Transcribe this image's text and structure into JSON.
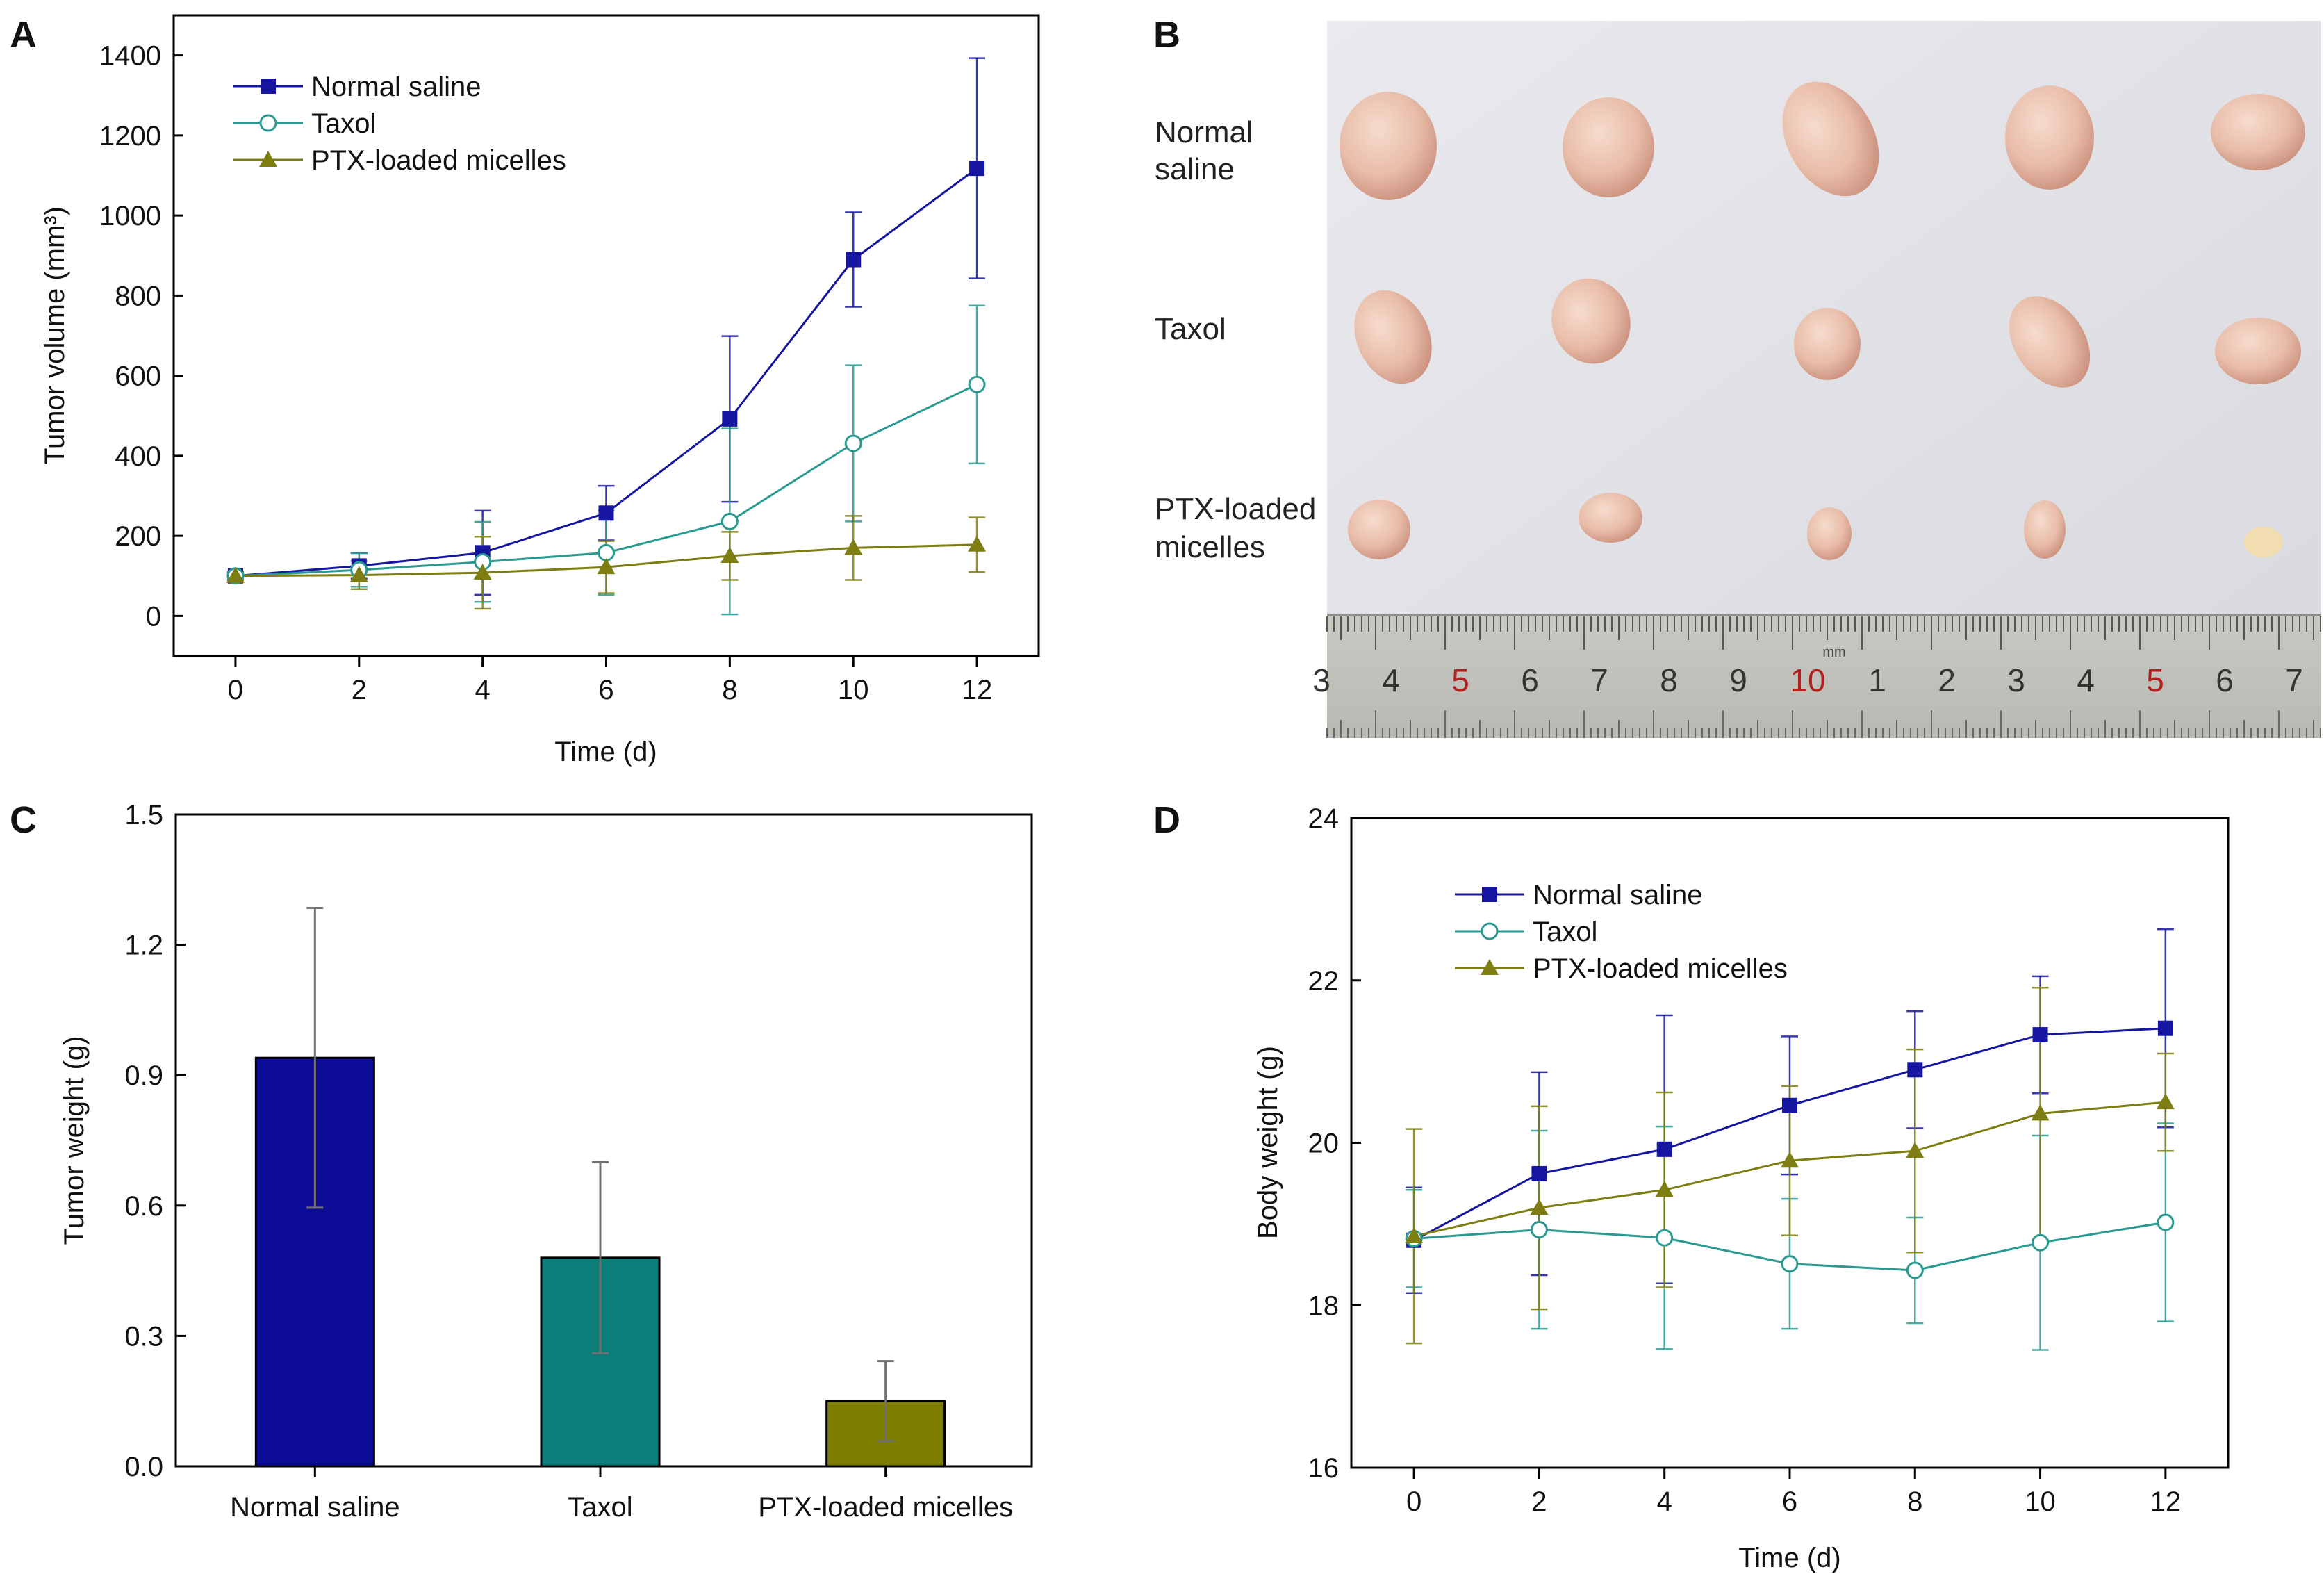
{
  "panels": {
    "a": "A",
    "b": "B",
    "c": "C",
    "d": "D"
  },
  "colors": {
    "normal_saline": "#1515a0",
    "taxol": "#2a9a90",
    "ptx": "#7d7d12",
    "bar_normal": "#0c0c96",
    "bar_taxol": "#0d7f7a",
    "bar_ptx": "#7d7d00",
    "errbar": "#707070"
  },
  "photo": {
    "row_labels": [
      "Normal\nsaline",
      "Taxol",
      "PTX-loaded\nmicelles"
    ],
    "ruler_numbers": [
      "3",
      "4",
      "5",
      "6",
      "7",
      "8",
      "9",
      "10",
      "1",
      "2",
      "3",
      "4",
      "5",
      "6",
      "7"
    ],
    "ruler_unit": "mm"
  },
  "chart_data": [
    {
      "panel": "A",
      "type": "line",
      "xlabel": "Time (d)",
      "ylabel": "Tumor volume (mm³)",
      "xlim": [
        -1,
        13
      ],
      "ylim": [
        -100,
        1500
      ],
      "xticks": [
        0,
        2,
        4,
        6,
        8,
        10,
        12
      ],
      "yticks": [
        0,
        200,
        400,
        600,
        800,
        1000,
        1200,
        1400
      ],
      "legend_position": "top-left",
      "series": [
        {
          "name": "Normal  saline",
          "key": "normal_saline",
          "marker": "square",
          "x": [
            0,
            2,
            4,
            6,
            8,
            10,
            12
          ],
          "values": [
            100,
            125,
            158,
            257,
            492,
            890,
            1118
          ],
          "errors": [
            10,
            32,
            105,
            68,
            207,
            118,
            275
          ]
        },
        {
          "name": "Taxol",
          "key": "taxol",
          "marker": "circle-open",
          "x": [
            0,
            2,
            4,
            6,
            8,
            10,
            12
          ],
          "values": [
            100,
            115,
            135,
            158,
            236,
            431,
            578
          ],
          "errors": [
            10,
            42,
            100,
            105,
            232,
            195,
            197
          ]
        },
        {
          "name": "PTX-loaded micelles",
          "key": "ptx",
          "marker": "triangle",
          "x": [
            0,
            2,
            4,
            6,
            8,
            10,
            12
          ],
          "values": [
            100,
            102,
            108,
            122,
            150,
            170,
            178
          ],
          "errors": [
            10,
            35,
            90,
            65,
            60,
            80,
            68
          ]
        }
      ]
    },
    {
      "panel": "C",
      "type": "bar",
      "xlabel": "",
      "ylabel": "Tumor weight (g)",
      "ylim": [
        0,
        1.5
      ],
      "yticks": [
        "0.0",
        "0.3",
        "0.6",
        "0.9",
        "1.2",
        "1.5"
      ],
      "categories": [
        "Normal saline",
        "Taxol",
        "PTX-loaded micelles"
      ],
      "values": [
        0.94,
        0.48,
        0.15
      ],
      "errors": [
        0.345,
        0.22,
        0.092
      ],
      "bar_keys": [
        "bar_normal",
        "bar_taxol",
        "bar_ptx"
      ]
    },
    {
      "panel": "D",
      "type": "line",
      "xlabel": "Time (d)",
      "ylabel": "Body weight (g)",
      "xlim": [
        -1,
        13
      ],
      "ylim": [
        16,
        24
      ],
      "xticks": [
        0,
        2,
        4,
        6,
        8,
        10,
        12
      ],
      "yticks": [
        16,
        18,
        20,
        22,
        24
      ],
      "legend_position": "top-left",
      "series": [
        {
          "name": "Normal saline",
          "key": "normal_saline",
          "marker": "square",
          "x": [
            0,
            2,
            4,
            6,
            8,
            10,
            12
          ],
          "values": [
            18.8,
            19.62,
            19.92,
            20.46,
            20.9,
            21.33,
            21.41
          ],
          "errors": [
            0.65,
            1.25,
            1.65,
            0.85,
            0.72,
            0.72,
            1.22
          ]
        },
        {
          "name": "Taxol",
          "key": "taxol",
          "marker": "circle-open",
          "x": [
            0,
            2,
            4,
            6,
            8,
            10,
            12
          ],
          "values": [
            18.82,
            18.93,
            18.83,
            18.51,
            18.43,
            18.77,
            19.02
          ],
          "errors": [
            0.6,
            1.22,
            1.37,
            0.8,
            0.65,
            1.32,
            1.22
          ]
        },
        {
          "name": "PTX-loaded micelles",
          "key": "ptx",
          "marker": "triangle",
          "x": [
            0,
            2,
            4,
            6,
            8,
            10,
            12
          ],
          "values": [
            18.85,
            19.2,
            19.42,
            19.78,
            19.9,
            20.36,
            20.5
          ],
          "errors": [
            1.32,
            1.25,
            1.2,
            0.92,
            1.25,
            1.55,
            0.6
          ]
        }
      ]
    }
  ]
}
